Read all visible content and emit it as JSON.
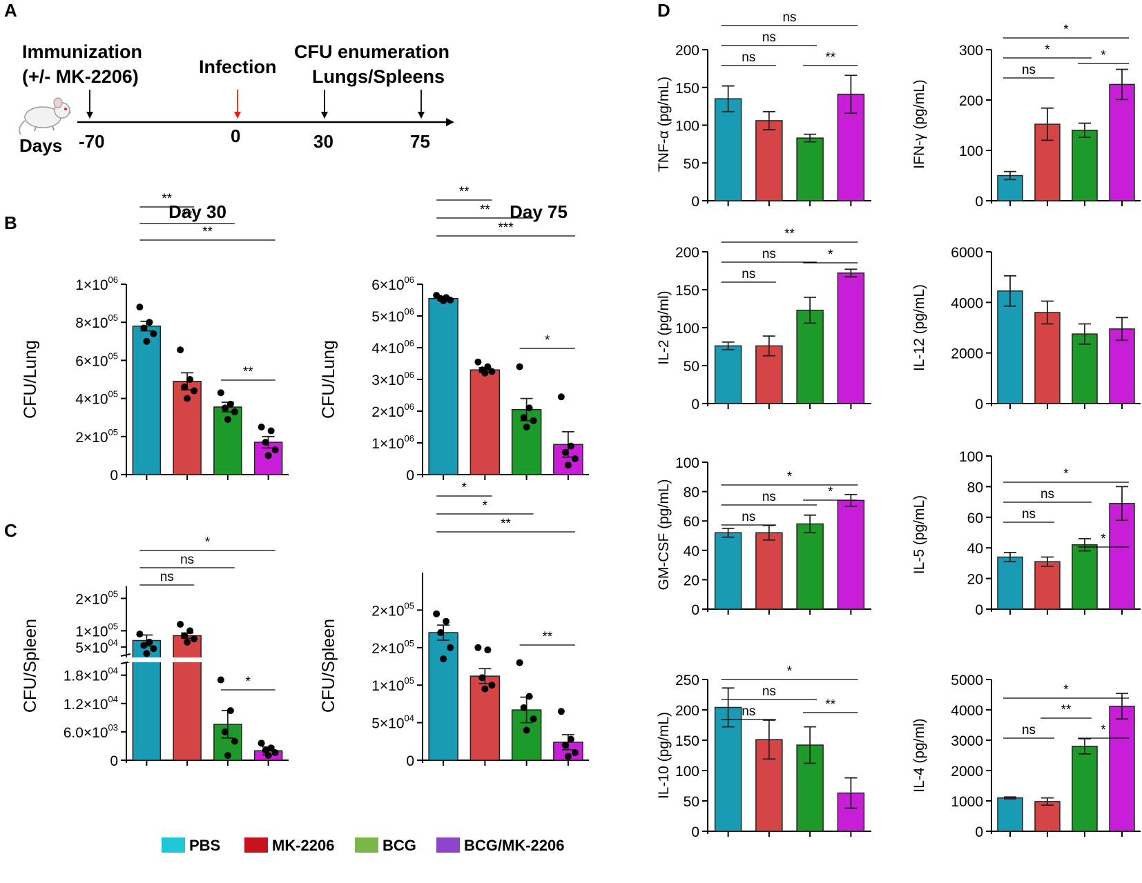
{
  "panel_labels": [
    "A",
    "B",
    "C",
    "D"
  ],
  "colors": {
    "PBS": "#1a9bb5",
    "MK-2206": "#d64545",
    "BCG": "#1e9a2a",
    "BCG/MK-2206": "#c81ed8"
  },
  "legend": [
    {
      "label": "PBS",
      "color": "#1ec8d8"
    },
    {
      "label": "MK-2206",
      "color": "#c8121e"
    },
    {
      "label": "BCG",
      "color": "#7ab648"
    },
    {
      "label": "BCG/MK-2206",
      "color": "#8e44c8"
    }
  ],
  "timeline": {
    "labels": {
      "immunization": "Immunization",
      "immunization_sub": "(+/- MK-2206)",
      "infection": "Infection",
      "cfu": "CFU enumeration",
      "cfu_sub": "Lungs/Spleens",
      "days": "Days"
    },
    "days": [
      "-70",
      "0",
      "30",
      "75"
    ]
  },
  "chart_data": [
    {
      "id": "B_day30",
      "type": "bar",
      "title": "Day 30",
      "ylabel": "CFU/Lung",
      "categories": [
        "PBS",
        "MK-2206",
        "BCG",
        "BCG/MK-2206"
      ],
      "ylim": [
        0,
        1000000
      ],
      "yticks": [
        {
          "v": 0,
          "m": "0",
          "e": ""
        },
        {
          "v": 200000,
          "m": "2×10",
          "e": "05"
        },
        {
          "v": 400000,
          "m": "4×10",
          "e": "05"
        },
        {
          "v": 600000,
          "m": "6×10",
          "e": "05"
        },
        {
          "v": 800000,
          "m": "8×10",
          "e": "05"
        },
        {
          "v": 1000000,
          "m": "1×10",
          "e": "06"
        }
      ],
      "values": [
        780000,
        490000,
        355000,
        170000
      ],
      "errors": [
        25000,
        45000,
        25000,
        30000
      ],
      "points": [
        [
          880000,
          800000,
          770000,
          740000,
          700000
        ],
        [
          655000,
          500000,
          460000,
          440000,
          400000
        ],
        [
          430000,
          370000,
          350000,
          330000,
          290000
        ],
        [
          250000,
          230000,
          170000,
          130000,
          100000
        ]
      ],
      "comparisons": [
        {
          "i": 0,
          "j": 3,
          "label": "**"
        },
        {
          "i": 0,
          "j": 2,
          "label": "**"
        },
        {
          "i": 0,
          "j": 1,
          "label": "**"
        },
        {
          "i": 2,
          "j": 3,
          "label": "**"
        }
      ]
    },
    {
      "id": "B_day75",
      "type": "bar",
      "title": "Day 75",
      "ylabel": "CFU/Lung",
      "categories": [
        "PBS",
        "MK-2206",
        "BCG",
        "BCG/MK-2206"
      ],
      "ylim": [
        0,
        6000000
      ],
      "yticks": [
        {
          "v": 0,
          "m": "0",
          "e": ""
        },
        {
          "v": 1000000,
          "m": "1×10",
          "e": "06"
        },
        {
          "v": 2000000,
          "m": "2×10",
          "e": "06"
        },
        {
          "v": 3000000,
          "m": "3×10",
          "e": "06"
        },
        {
          "v": 4000000,
          "m": "4×10",
          "e": "06"
        },
        {
          "v": 5000000,
          "m": "5×10",
          "e": "06"
        },
        {
          "v": 6000000,
          "m": "6×10",
          "e": "06"
        }
      ],
      "values": [
        5550000,
        3300000,
        2050000,
        950000
      ],
      "errors": [
        60000,
        70000,
        350000,
        400000
      ],
      "points": [
        [
          5650000,
          5580000,
          5550000,
          5500000,
          5480000
        ],
        [
          3550000,
          3400000,
          3300000,
          3250000,
          3200000
        ],
        [
          3400000,
          2100000,
          1800000,
          1700000,
          1500000
        ],
        [
          2450000,
          900000,
          700000,
          500000,
          300000
        ]
      ],
      "comparisons": [
        {
          "i": 0,
          "j": 3,
          "label": "***"
        },
        {
          "i": 0,
          "j": 2,
          "label": "**"
        },
        {
          "i": 0,
          "j": 1,
          "label": "**"
        },
        {
          "i": 2,
          "j": 3,
          "label": "*"
        }
      ]
    },
    {
      "id": "C_day30",
      "type": "bar",
      "ylabel": "CFU/Spleen",
      "broken_axis": true,
      "categories": [
        "PBS",
        "MK-2206",
        "BCG",
        "BCG/MK-2206"
      ],
      "lower_ylim": [
        0,
        20000
      ],
      "upper_ylim": [
        20000,
        220000
      ],
      "yticks_lower": [
        {
          "v": 0,
          "m": "0",
          "e": ""
        },
        {
          "v": 6000,
          "m": "6.0×10",
          "e": "03"
        },
        {
          "v": 12000,
          "m": "1.2×10",
          "e": "04"
        },
        {
          "v": 18000,
          "m": "1.8×10",
          "e": "04"
        }
      ],
      "yticks_upper": [
        {
          "v": 50000,
          "m": "5×10",
          "e": "04"
        },
        {
          "v": 100000,
          "m": "1×10",
          "e": "05"
        },
        {
          "v": 200000,
          "m": "2×10",
          "e": "05"
        }
      ],
      "values": [
        70000,
        85000,
        7600,
        2000
      ],
      "errors": [
        17000,
        8000,
        2900,
        800
      ],
      "points": [
        [
          90000,
          65000,
          55000,
          45000,
          30000
        ],
        [
          120000,
          100000,
          85000,
          75000,
          65000
        ],
        [
          17000,
          10500,
          6000,
          4000,
          1000
        ],
        [
          3600,
          2600,
          2100,
          1600,
          1000
        ]
      ],
      "comparisons": [
        {
          "i": 0,
          "j": 3,
          "label": "*"
        },
        {
          "i": 0,
          "j": 2,
          "label": "ns"
        },
        {
          "i": 0,
          "j": 1,
          "label": "ns"
        },
        {
          "i": 2,
          "j": 3,
          "label": "*"
        }
      ]
    },
    {
      "id": "C_day75",
      "type": "bar",
      "ylabel": "CFU/Spleen",
      "categories": [
        "PBS",
        "MK-2206",
        "BCG",
        "BCG/MK-2206"
      ],
      "ylim": [
        0,
        250000
      ],
      "yticks": [
        {
          "v": 0,
          "m": "0",
          "e": ""
        },
        {
          "v": 50000,
          "m": "5×10",
          "e": "04"
        },
        {
          "v": 100000,
          "m": "1×10",
          "e": "05"
        },
        {
          "v": 150000,
          "m": "2×10",
          "e": "05"
        },
        {
          "v": 200000,
          "m": "2×10",
          "e": "05"
        }
      ],
      "values": [
        170000,
        112000,
        67000,
        24000
      ],
      "errors": [
        10000,
        10000,
        17000,
        10000
      ],
      "points": [
        [
          195000,
          185000,
          170000,
          150000,
          135000
        ],
        [
          150000,
          147000,
          110000,
          100000,
          95000
        ],
        [
          130000,
          85000,
          70000,
          55000,
          40000
        ],
        [
          65000,
          28000,
          20000,
          10000,
          5000
        ]
      ],
      "comparisons": [
        {
          "i": 0,
          "j": 3,
          "label": "**"
        },
        {
          "i": 0,
          "j": 2,
          "label": "*"
        },
        {
          "i": 0,
          "j": 1,
          "label": "*"
        },
        {
          "i": 2,
          "j": 3,
          "label": "**"
        }
      ]
    },
    {
      "id": "D_TNF",
      "type": "bar",
      "ylabel": "TNF-α (pg/mL)",
      "categories": [
        "PBS",
        "MK-2206",
        "BCG",
        "BCG/MK-2206"
      ],
      "ylim": [
        0,
        200
      ],
      "yticks": [
        {
          "v": 0,
          "m": "0"
        },
        {
          "v": 50,
          "m": "50"
        },
        {
          "v": 100,
          "m": "100"
        },
        {
          "v": 150,
          "m": "150"
        },
        {
          "v": 200,
          "m": "200"
        }
      ],
      "values": [
        135,
        106,
        83,
        141
      ],
      "errors": [
        17,
        12,
        5,
        25
      ],
      "comparisons": [
        {
          "i": 0,
          "j": 3,
          "label": "ns"
        },
        {
          "i": 0,
          "j": 2,
          "label": "ns"
        },
        {
          "i": 0,
          "j": 1,
          "label": "ns"
        },
        {
          "i": 2,
          "j": 3,
          "label": "**"
        }
      ]
    },
    {
      "id": "D_IFN",
      "type": "bar",
      "ylabel": "IFN-γ (pg/mL)",
      "categories": [
        "PBS",
        "MK-2206",
        "BCG",
        "BCG/MK-2206"
      ],
      "ylim": [
        0,
        300
      ],
      "yticks": [
        {
          "v": 0,
          "m": "0"
        },
        {
          "v": 100,
          "m": "100"
        },
        {
          "v": 200,
          "m": "200"
        },
        {
          "v": 300,
          "m": "300"
        }
      ],
      "values": [
        50,
        152,
        140,
        231
      ],
      "errors": [
        8,
        32,
        14,
        30
      ],
      "comparisons": [
        {
          "i": 0,
          "j": 3,
          "label": "*"
        },
        {
          "i": 0,
          "j": 2,
          "label": "*"
        },
        {
          "i": 0,
          "j": 1,
          "label": "ns"
        },
        {
          "i": 2,
          "j": 3,
          "label": "*"
        }
      ]
    },
    {
      "id": "D_IL2",
      "type": "bar",
      "ylabel": "IL-2 (pg/ml)",
      "categories": [
        "PBS",
        "MK-2206",
        "BCG",
        "BCG/MK-2206"
      ],
      "ylim": [
        0,
        200
      ],
      "yticks": [
        {
          "v": 0,
          "m": "0"
        },
        {
          "v": 50,
          "m": "50"
        },
        {
          "v": 100,
          "m": "100"
        },
        {
          "v": 150,
          "m": "150"
        },
        {
          "v": 200,
          "m": "200"
        }
      ],
      "values": [
        76,
        76,
        123,
        172
      ],
      "errors": [
        5,
        13,
        17,
        5
      ],
      "comparisons": [
        {
          "i": 0,
          "j": 3,
          "label": "**"
        },
        {
          "i": 0,
          "j": 2,
          "label": "ns"
        },
        {
          "i": 0,
          "j": 1,
          "label": "ns"
        },
        {
          "i": 2,
          "j": 3,
          "label": "*"
        }
      ]
    },
    {
      "id": "D_IL12",
      "type": "bar",
      "ylabel": "IL-12 (pg/mL)",
      "categories": [
        "PBS",
        "MK-2206",
        "BCG",
        "BCG/MK-2206"
      ],
      "ylim": [
        0,
        6000
      ],
      "yticks": [
        {
          "v": 0,
          "m": "0"
        },
        {
          "v": 2000,
          "m": "2000"
        },
        {
          "v": 4000,
          "m": "4000"
        },
        {
          "v": 6000,
          "m": "6000"
        }
      ],
      "values": [
        4450,
        3600,
        2750,
        2950
      ],
      "errors": [
        600,
        450,
        400,
        450
      ],
      "comparisons": []
    },
    {
      "id": "D_GMCSF",
      "type": "bar",
      "ylabel": "GM-CSF (pg/mL)",
      "categories": [
        "PBS",
        "MK-2206",
        "BCG",
        "BCG/MK-2206"
      ],
      "ylim": [
        0,
        100
      ],
      "yticks": [
        {
          "v": 0,
          "m": "0"
        },
        {
          "v": 20,
          "m": "20"
        },
        {
          "v": 40,
          "m": "40"
        },
        {
          "v": 60,
          "m": "60"
        },
        {
          "v": 80,
          "m": "80"
        },
        {
          "v": 100,
          "m": "100"
        }
      ],
      "values": [
        52,
        52,
        58,
        74
      ],
      "errors": [
        3,
        5,
        6,
        4
      ],
      "comparisons": [
        {
          "i": 0,
          "j": 3,
          "label": "*"
        },
        {
          "i": 0,
          "j": 2,
          "label": "ns"
        },
        {
          "i": 0,
          "j": 1,
          "label": "ns"
        },
        {
          "i": 2,
          "j": 3,
          "label": "*"
        }
      ]
    },
    {
      "id": "D_IL5",
      "type": "bar",
      "ylabel": "IL-5 (pg/mL)",
      "categories": [
        "PBS",
        "MK-2206",
        "BCG",
        "BCG/MK-2206"
      ],
      "ylim": [
        0,
        100
      ],
      "yticks": [
        {
          "v": 0,
          "m": "0"
        },
        {
          "v": 20,
          "m": "20"
        },
        {
          "v": 40,
          "m": "40"
        },
        {
          "v": 60,
          "m": "60"
        },
        {
          "v": 80,
          "m": "80"
        },
        {
          "v": 100,
          "m": "100"
        }
      ],
      "values": [
        34,
        31,
        42,
        69
      ],
      "errors": [
        3,
        3,
        4,
        11
      ],
      "comparisons": [
        {
          "i": 0,
          "j": 3,
          "label": "*"
        },
        {
          "i": 0,
          "j": 2,
          "label": "ns"
        },
        {
          "i": 0,
          "j": 1,
          "label": "ns"
        },
        {
          "i": 2,
          "j": 3,
          "label": "*"
        }
      ]
    },
    {
      "id": "D_IL10",
      "type": "bar",
      "ylabel": "IL-10 (pg/mL)",
      "categories": [
        "PBS",
        "MK-2206",
        "BCG",
        "BCG/MK-2206"
      ],
      "ylim": [
        0,
        250
      ],
      "yticks": [
        {
          "v": 0,
          "m": "0"
        },
        {
          "v": 50,
          "m": "50"
        },
        {
          "v": 100,
          "m": "100"
        },
        {
          "v": 150,
          "m": "150"
        },
        {
          "v": 200,
          "m": "200"
        },
        {
          "v": 250,
          "m": "250"
        }
      ],
      "values": [
        204,
        151,
        142,
        63
      ],
      "errors": [
        32,
        32,
        30,
        25
      ],
      "comparisons": [
        {
          "i": 0,
          "j": 3,
          "label": "*"
        },
        {
          "i": 0,
          "j": 2,
          "label": "ns"
        },
        {
          "i": 0,
          "j": 1,
          "label": "ns"
        },
        {
          "i": 2,
          "j": 3,
          "label": "**"
        }
      ]
    },
    {
      "id": "D_IL4",
      "type": "bar",
      "ylabel": "IL-4 (pg/ml)",
      "categories": [
        "PBS",
        "MK-2206",
        "BCG",
        "BCG/MK-2206"
      ],
      "ylim": [
        0,
        5000
      ],
      "yticks": [
        {
          "v": 0,
          "m": "0"
        },
        {
          "v": 1000,
          "m": "1000"
        },
        {
          "v": 2000,
          "m": "2000"
        },
        {
          "v": 3000,
          "m": "3000"
        },
        {
          "v": 4000,
          "m": "4000"
        },
        {
          "v": 5000,
          "m": "5000"
        }
      ],
      "values": [
        1100,
        980,
        2800,
        4120
      ],
      "errors": [
        30,
        120,
        250,
        420
      ],
      "comparisons": [
        {
          "i": 0,
          "j": 3,
          "label": "*"
        },
        {
          "i": 1,
          "j": 2,
          "label": "**"
        },
        {
          "i": 0,
          "j": 1,
          "label": "ns"
        },
        {
          "i": 2,
          "j": 3,
          "label": "*"
        }
      ]
    }
  ]
}
